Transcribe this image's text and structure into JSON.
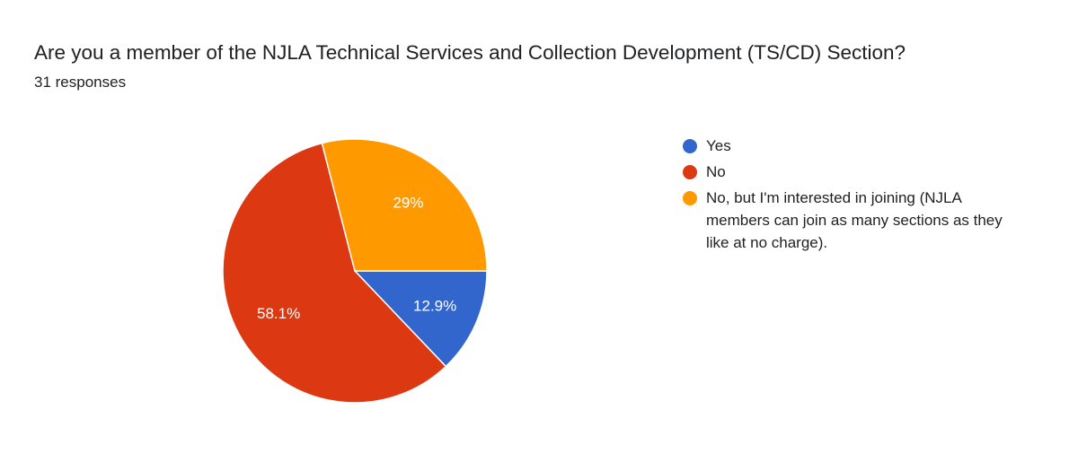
{
  "chart_data": {
    "type": "pie",
    "title": "Are you a member of the NJLA Technical Services and Collection Development (TS/CD) Section?",
    "subtitle": "31 responses",
    "slices": [
      {
        "label": "Yes",
        "value": 12.9,
        "display": "12.9%",
        "color": "#3366cc"
      },
      {
        "label": "No",
        "value": 58.1,
        "display": "58.1%",
        "color": "#dc3912"
      },
      {
        "label": "No, but I'm interested in joining (NJLA members can join as many sections as they like at no charge).",
        "value": 29,
        "display": "29%",
        "color": "#ff9900"
      }
    ],
    "legend_position": "right",
    "start": "3 o'clock",
    "direction": "clockwise"
  }
}
